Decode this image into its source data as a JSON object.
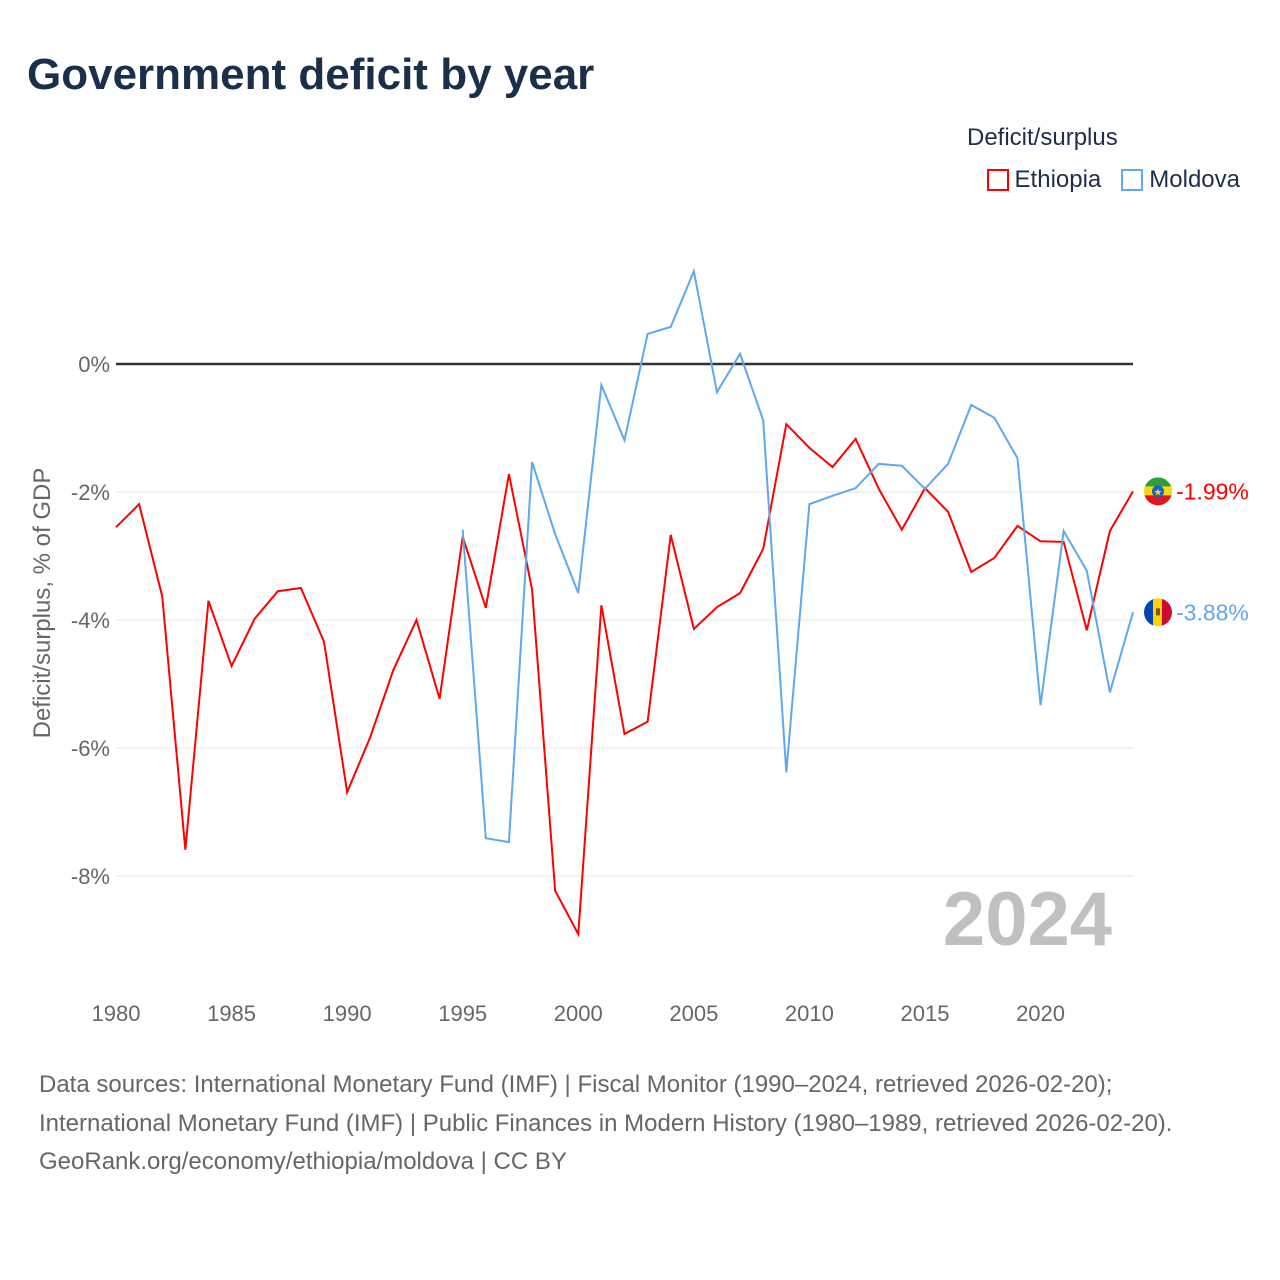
{
  "title": "Government deficit by year",
  "legend": {
    "title": "Deficit/surplus",
    "items": [
      {
        "name": "Ethiopia",
        "color": "#ff0000"
      },
      {
        "name": "Moldova",
        "color": "#5ea8ee"
      }
    ]
  },
  "year_label": "2024",
  "footer": {
    "sources": "Data sources: International Monetary Fund (IMF) | Fiscal Monitor (1990–2024, retrieved 2026-02-20); International Monetary Fund (IMF) | Public Finances in Modern History (1980–1989, retrieved 2026-02-20).",
    "credit": "GeoRank.org/economy/ethiopia/moldova | CC BY"
  },
  "chart_data": {
    "type": "line",
    "title": "Government deficit by year",
    "xlabel": "",
    "ylabel": "Deficit/surplus, % of GDP",
    "xlim": [
      1980,
      2024
    ],
    "ylim": [
      -9.5,
      1.8
    ],
    "x_ticks": [
      1980,
      1985,
      1990,
      1995,
      2000,
      2005,
      2010,
      2015,
      2020
    ],
    "x_tick_labels": [
      "1980",
      "1985",
      "1990",
      "1995",
      "2000",
      "2005",
      "2010",
      "2015",
      "2020"
    ],
    "y_ticks": [
      0,
      -2,
      -4,
      -6,
      -8
    ],
    "y_tick_labels": [
      "0%",
      "-2%",
      "-4%",
      "-6%",
      "-8%"
    ],
    "grid": true,
    "legend_position": "top-right",
    "series": [
      {
        "name": "Ethiopia",
        "color": "#ff0000",
        "end_label": "-1.99%",
        "start_year": 1980,
        "values": [
          -2.55,
          -2.19,
          -3.63,
          -7.59,
          -3.7,
          -4.72,
          -3.98,
          -3.55,
          -3.5,
          -4.34,
          -6.69,
          -5.83,
          -4.78,
          -4.0,
          -5.23,
          -2.7,
          -3.81,
          -1.72,
          -3.52,
          -8.23,
          -8.91,
          -3.77,
          -5.78,
          -5.59,
          -2.67,
          -4.14,
          -3.8,
          -3.58,
          -2.89,
          -0.94,
          -1.31,
          -1.61,
          -1.17,
          -1.95,
          -2.59,
          -1.94,
          -2.31,
          -3.25,
          -3.03,
          -2.53,
          -2.77,
          -2.78,
          -4.16,
          -2.61,
          -1.99
        ]
      },
      {
        "name": "Moldova",
        "color": "#5ea8ee",
        "end_label": "-3.88%",
        "start_year": 1995,
        "values": [
          -2.59,
          -7.41,
          -7.47,
          -1.53,
          -2.66,
          -3.58,
          -0.33,
          -1.19,
          0.47,
          0.58,
          1.45,
          -0.44,
          0.16,
          -0.88,
          -6.38,
          -2.19,
          -2.06,
          -1.94,
          -1.56,
          -1.59,
          -1.95,
          -1.56,
          -0.64,
          -0.84,
          -1.47,
          -5.33,
          -2.61,
          -3.23,
          -5.13,
          -3.88
        ]
      }
    ]
  }
}
